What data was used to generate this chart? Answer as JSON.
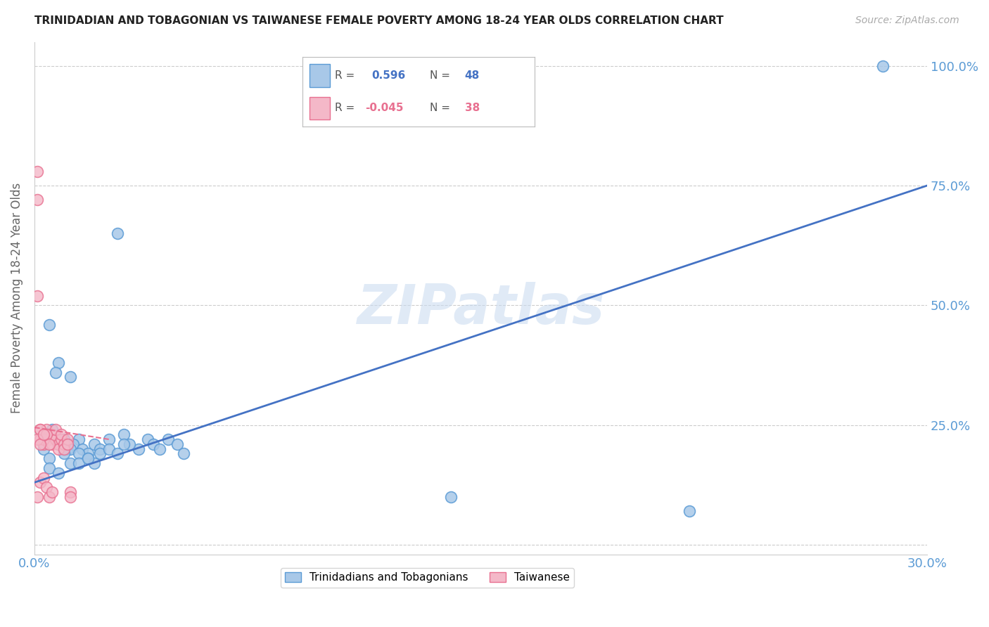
{
  "title": "TRINIDADIAN AND TOBAGONIAN VS TAIWANESE FEMALE POVERTY AMONG 18-24 YEAR OLDS CORRELATION CHART",
  "source": "Source: ZipAtlas.com",
  "ylabel": "Female Poverty Among 18-24 Year Olds",
  "xlim": [
    0.0,
    0.3
  ],
  "ylim": [
    -0.02,
    1.05
  ],
  "grid_color": "#cccccc",
  "background_color": "#ffffff",
  "blue_color": "#a8c8e8",
  "blue_edge": "#5b9bd5",
  "pink_color": "#f4b8c8",
  "pink_edge": "#e87090",
  "blue_R": 0.596,
  "blue_N": 48,
  "pink_R": -0.045,
  "pink_N": 38,
  "axis_color": "#5b9bd5",
  "legend_label_blue": "Trinidadians and Tobagonians",
  "legend_label_pink": "Taiwanese",
  "blue_line_color": "#4472c4",
  "pink_line_color": "#e87090",
  "blue_scatter_x": [
    0.028,
    0.005,
    0.035,
    0.012,
    0.008,
    0.004,
    0.003,
    0.006,
    0.01,
    0.015,
    0.007,
    0.009,
    0.011,
    0.013,
    0.016,
    0.018,
    0.02,
    0.022,
    0.025,
    0.03,
    0.032,
    0.038,
    0.04,
    0.042,
    0.045,
    0.048,
    0.05,
    0.003,
    0.005,
    0.008,
    0.01,
    0.012,
    0.015,
    0.018,
    0.02,
    0.022,
    0.025,
    0.028,
    0.03,
    0.14,
    0.22,
    0.005,
    0.008,
    0.012,
    0.015,
    0.01,
    0.285,
    0.018
  ],
  "blue_scatter_y": [
    0.65,
    0.46,
    0.2,
    0.35,
    0.38,
    0.22,
    0.21,
    0.24,
    0.2,
    0.22,
    0.36,
    0.22,
    0.2,
    0.21,
    0.2,
    0.19,
    0.21,
    0.2,
    0.22,
    0.23,
    0.21,
    0.22,
    0.21,
    0.2,
    0.22,
    0.21,
    0.19,
    0.2,
    0.18,
    0.21,
    0.22,
    0.2,
    0.19,
    0.18,
    0.17,
    0.19,
    0.2,
    0.19,
    0.21,
    0.1,
    0.07,
    0.16,
    0.15,
    0.17,
    0.17,
    0.19,
    1.0,
    0.18
  ],
  "pink_scatter_x": [
    0.001,
    0.001,
    0.002,
    0.002,
    0.003,
    0.003,
    0.004,
    0.004,
    0.005,
    0.005,
    0.006,
    0.006,
    0.007,
    0.007,
    0.008,
    0.008,
    0.009,
    0.009,
    0.01,
    0.01,
    0.011,
    0.011,
    0.012,
    0.012,
    0.001,
    0.002,
    0.003,
    0.004,
    0.005,
    0.001,
    0.002,
    0.003,
    0.004,
    0.005,
    0.006,
    0.001,
    0.002,
    0.003
  ],
  "pink_scatter_y": [
    0.78,
    0.72,
    0.24,
    0.22,
    0.23,
    0.21,
    0.24,
    0.22,
    0.22,
    0.23,
    0.21,
    0.23,
    0.22,
    0.24,
    0.21,
    0.2,
    0.22,
    0.23,
    0.21,
    0.2,
    0.22,
    0.21,
    0.11,
    0.1,
    0.52,
    0.24,
    0.22,
    0.23,
    0.21,
    0.1,
    0.13,
    0.14,
    0.12,
    0.1,
    0.11,
    0.22,
    0.21,
    0.23
  ],
  "blue_line_x0": 0.0,
  "blue_line_y0": 0.13,
  "blue_line_x1": 0.3,
  "blue_line_y1": 0.75,
  "pink_line_x0": 0.0,
  "pink_line_y0": 0.245,
  "pink_line_x1": 0.025,
  "pink_line_y1": 0.22
}
